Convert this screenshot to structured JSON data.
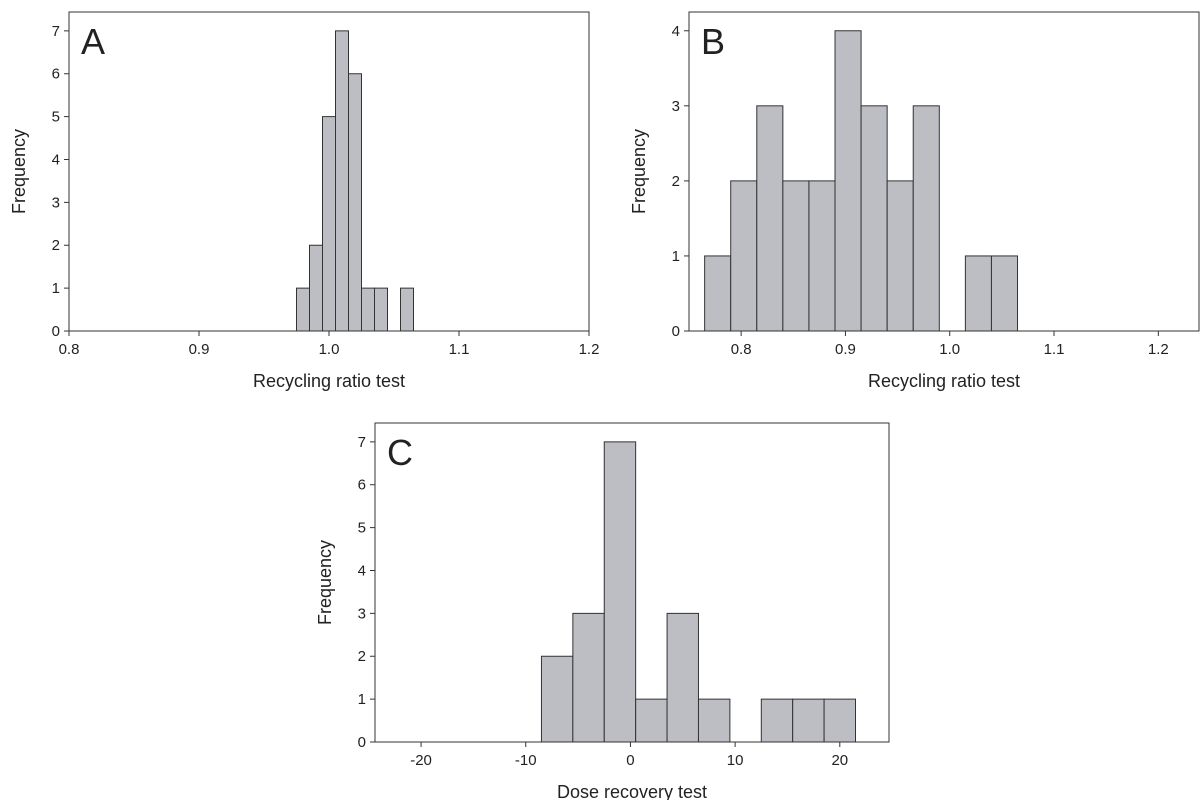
{
  "chart_data": [
    {
      "type": "histogram",
      "label": "A",
      "xlabel": "Recycling ratio test",
      "ylabel": "Frequency",
      "color": "#bcbec3",
      "bins": [
        0.975,
        0.985,
        0.995,
        1.005,
        1.015,
        1.025,
        1.035,
        1.045,
        1.055,
        1.065
      ],
      "values": [
        1,
        2,
        5,
        7,
        6,
        1,
        1,
        0,
        1
      ],
      "xlim": [
        0.8,
        1.2
      ],
      "xticks": [
        0.8,
        0.9,
        {
          "value": 1.0,
          "label": "1.0"
        },
        1.1,
        1.2
      ],
      "ylim": [
        0,
        7.44
      ],
      "yticks": [
        0,
        1,
        2,
        3,
        4,
        5,
        6,
        7
      ]
    },
    {
      "type": "histogram",
      "label": "B",
      "xlabel": "Recycling ratio test",
      "ylabel": "Frequency",
      "color": "#bcbec3",
      "bins": [
        0.765,
        0.79,
        0.815,
        0.84,
        0.865,
        0.89,
        0.915,
        0.94,
        0.965,
        0.99,
        1.015,
        1.04,
        1.065
      ],
      "values": [
        1,
        2,
        3,
        2,
        2,
        4,
        3,
        2,
        3,
        0,
        1,
        1
      ],
      "xlim": [
        0.75,
        1.239
      ],
      "xticks": [
        0.8,
        0.9,
        {
          "value": 1.0,
          "label": "1.0"
        },
        1.1,
        1.2
      ],
      "ylim": [
        0,
        4.25
      ],
      "yticks": [
        0,
        1,
        2,
        3,
        4
      ]
    },
    {
      "type": "histogram",
      "label": "C",
      "xlabel": "Dose recovery test",
      "ylabel": "Frequency",
      "color": "#bcbec3",
      "bins": [
        -8.5,
        -5.5,
        -2.5,
        0.5,
        3.5,
        6.5,
        9.5,
        12.5,
        15.5,
        18.5,
        21.5
      ],
      "values": [
        2,
        3,
        7,
        1,
        3,
        1,
        0,
        1,
        1,
        1
      ],
      "xlim": [
        -24.4,
        24.7
      ],
      "xticks": [
        -20,
        -10,
        0,
        10,
        20
      ],
      "ylim": [
        0,
        7.44
      ],
      "yticks": [
        0,
        1,
        2,
        3,
        4,
        5,
        6,
        7
      ]
    }
  ]
}
